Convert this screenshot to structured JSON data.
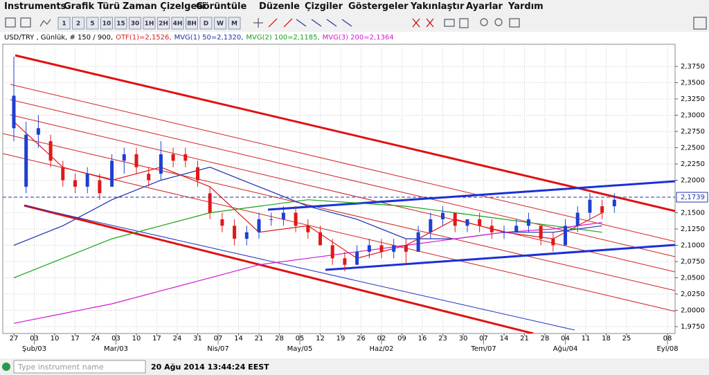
{
  "menu": [
    "Instruments",
    "Grafik Türü",
    "Zaman Çizelgesi",
    "Görüntüle",
    "Düzenle",
    "Çizgiler",
    "Göstergeler",
    "Yakınlaştır",
    "Ayarlar",
    "Yardım"
  ],
  "timeframes": [
    "1",
    "2",
    "5",
    "10",
    "15",
    "30",
    "1H",
    "2H",
    "4H",
    "8H",
    "D",
    "W",
    "M"
  ],
  "chart_data": {
    "type": "candlestick",
    "title": "USD/TRY , Günlük, # 150 / 900,",
    "x": [
      0,
      3,
      6,
      9,
      12,
      15,
      18,
      21,
      24,
      27,
      30,
      33,
      36,
      39,
      42,
      45,
      48,
      51,
      54,
      57,
      60,
      63,
      66,
      69,
      72,
      75,
      78,
      81,
      84,
      87,
      90,
      93,
      96,
      99,
      102,
      105,
      108,
      111,
      114,
      117,
      120,
      123,
      126,
      129,
      132,
      135,
      138,
      141,
      144,
      147
    ],
    "open": [
      2.28,
      2.19,
      2.27,
      2.26,
      2.22,
      2.2,
      2.19,
      2.2,
      2.19,
      2.23,
      2.24,
      2.21,
      2.21,
      2.24,
      2.24,
      2.22,
      2.18,
      2.14,
      2.13,
      2.11,
      2.12,
      2.14,
      2.14,
      2.15,
      2.13,
      2.12,
      2.1,
      2.08,
      2.07,
      2.09,
      2.1,
      2.09,
      2.1,
      2.09,
      2.12,
      2.14,
      2.15,
      2.13,
      2.14,
      2.13,
      2.12,
      2.12,
      2.13,
      2.13,
      2.11,
      2.1,
      2.13,
      2.15,
      2.16,
      2.16
    ],
    "high": [
      2.39,
      2.29,
      2.3,
      2.27,
      2.23,
      2.21,
      2.22,
      2.21,
      2.24,
      2.25,
      2.25,
      2.22,
      2.26,
      2.25,
      2.25,
      2.23,
      2.19,
      2.15,
      2.14,
      2.13,
      2.15,
      2.15,
      2.16,
      2.16,
      2.14,
      2.13,
      2.11,
      2.09,
      2.1,
      2.11,
      2.11,
      2.11,
      2.11,
      2.13,
      2.15,
      2.16,
      2.15,
      2.14,
      2.15,
      2.14,
      2.13,
      2.14,
      2.15,
      2.13,
      2.12,
      2.14,
      2.16,
      2.18,
      2.17,
      2.18
    ],
    "low": [
      2.26,
      2.18,
      2.25,
      2.22,
      2.19,
      2.18,
      2.18,
      2.17,
      2.19,
      2.21,
      2.21,
      2.19,
      2.2,
      2.22,
      2.22,
      2.19,
      2.14,
      2.12,
      2.1,
      2.1,
      2.11,
      2.13,
      2.13,
      2.12,
      2.11,
      2.1,
      2.07,
      2.06,
      2.07,
      2.08,
      2.08,
      2.08,
      2.07,
      2.09,
      2.11,
      2.13,
      2.12,
      2.12,
      2.12,
      2.11,
      2.11,
      2.12,
      2.12,
      2.1,
      2.09,
      2.1,
      2.12,
      2.14,
      2.14,
      2.15
    ],
    "close": [
      2.33,
      2.27,
      2.28,
      2.23,
      2.2,
      2.19,
      2.21,
      2.18,
      2.23,
      2.24,
      2.22,
      2.2,
      2.24,
      2.23,
      2.23,
      2.2,
      2.15,
      2.13,
      2.11,
      2.12,
      2.14,
      2.14,
      2.15,
      2.13,
      2.12,
      2.1,
      2.08,
      2.07,
      2.09,
      2.1,
      2.09,
      2.1,
      2.09,
      2.12,
      2.14,
      2.15,
      2.13,
      2.14,
      2.13,
      2.12,
      2.12,
      2.13,
      2.14,
      2.11,
      2.1,
      2.13,
      2.15,
      2.17,
      2.15,
      2.17
    ],
    "up_color": "#1f3fd0",
    "down_color": "#e01818",
    "series": [
      {
        "name": "OTF(1)=2,1526,",
        "color": "#e01818",
        "x": [
          0,
          12,
          24,
          36,
          48,
          60,
          72,
          84,
          96,
          108,
          120,
          132,
          144
        ],
        "values": [
          2.29,
          2.22,
          2.2,
          2.22,
          2.19,
          2.12,
          2.13,
          2.08,
          2.1,
          2.14,
          2.12,
          2.11,
          2.15
        ]
      },
      {
        "name": "MVG(1) 50=2,1320,",
        "color": "#1a2fb0",
        "x": [
          0,
          12,
          24,
          36,
          48,
          60,
          72,
          84,
          96,
          108,
          120,
          132,
          144
        ],
        "values": [
          2.1,
          2.13,
          2.17,
          2.2,
          2.22,
          2.19,
          2.16,
          2.14,
          2.11,
          2.11,
          2.12,
          2.12,
          2.13
        ]
      },
      {
        "name": "MVG(2) 100=2,1185,",
        "color": "#18a018",
        "x": [
          0,
          12,
          24,
          36,
          48,
          60,
          72,
          84,
          96,
          108,
          120,
          132,
          144
        ],
        "values": [
          2.05,
          2.08,
          2.11,
          2.13,
          2.15,
          2.16,
          2.17,
          2.165,
          2.16,
          2.15,
          2.14,
          2.13,
          2.12
        ]
      },
      {
        "name": "MVG(3) 200=2,1364",
        "color": "#d018d0",
        "x": [
          0,
          12,
          24,
          36,
          48,
          60,
          72,
          84,
          96,
          108,
          120,
          132,
          144
        ],
        "values": [
          1.98,
          1.995,
          2.01,
          2.03,
          2.05,
          2.07,
          2.08,
          2.09,
          2.1,
          2.11,
          2.12,
          2.125,
          2.135
        ]
      }
    ],
    "current_price": {
      "value": 2.1739,
      "label": "2,1739"
    },
    "xlim": [
      -2.71,
      161.86
    ],
    "ylim": [
      1.9644,
      2.409
    ],
    "grid": true,
    "yticks": [
      {
        "value": 1.975,
        "label": "1,9750"
      },
      {
        "value": 2.0,
        "label": "2,0000"
      },
      {
        "value": 2.025,
        "label": "2,0250"
      },
      {
        "value": 2.05,
        "label": "2,0500"
      },
      {
        "value": 2.075,
        "label": "2,0750"
      },
      {
        "value": 2.1,
        "label": "2,1000"
      },
      {
        "value": 2.125,
        "label": "2,1250"
      },
      {
        "value": 2.15,
        "label": "2,1500"
      },
      {
        "value": 2.2,
        "label": "2,2000"
      },
      {
        "value": 2.225,
        "label": "2,2250"
      },
      {
        "value": 2.25,
        "label": "2,2500"
      },
      {
        "value": 2.275,
        "label": "2,2750"
      },
      {
        "value": 2.3,
        "label": "2,3000"
      },
      {
        "value": 2.325,
        "label": "2,3250"
      },
      {
        "value": 2.35,
        "label": "2,3500"
      },
      {
        "value": 2.375,
        "label": "2,3750"
      }
    ],
    "xticks": [
      {
        "value": 0,
        "label": "27"
      },
      {
        "value": 5,
        "label": "03"
      },
      {
        "value": 10,
        "label": "10"
      },
      {
        "value": 15,
        "label": "17"
      },
      {
        "value": 20,
        "label": "24"
      },
      {
        "value": 25,
        "label": "03"
      },
      {
        "value": 30,
        "label": "10"
      },
      {
        "value": 35,
        "label": "17"
      },
      {
        "value": 40,
        "label": "24"
      },
      {
        "value": 45,
        "label": "31"
      },
      {
        "value": 50,
        "label": "07"
      },
      {
        "value": 55,
        "label": "14"
      },
      {
        "value": 60,
        "label": "21"
      },
      {
        "value": 65,
        "label": "28"
      },
      {
        "value": 70,
        "label": "05"
      },
      {
        "value": 75,
        "label": "12"
      },
      {
        "value": 80,
        "label": "19"
      },
      {
        "value": 85,
        "label": "26"
      },
      {
        "value": 90,
        "label": "02"
      },
      {
        "value": 95,
        "label": "09"
      },
      {
        "value": 100,
        "label": "16"
      },
      {
        "value": 105,
        "label": "23"
      },
      {
        "value": 110,
        "label": "30"
      },
      {
        "value": 115,
        "label": "07"
      },
      {
        "value": 120,
        "label": "14"
      },
      {
        "value": 125,
        "label": "21"
      },
      {
        "value": 130,
        "label": "28"
      },
      {
        "value": 135,
        "label": "04"
      },
      {
        "value": 140,
        "label": "11"
      },
      {
        "value": 145,
        "label": "18"
      },
      {
        "value": 150,
        "label": "25"
      },
      {
        "value": 160,
        "label": "08"
      }
    ],
    "month_ticks": [
      {
        "value": 5,
        "label": "Şub/03"
      },
      {
        "value": 25,
        "label": "Mar/03"
      },
      {
        "value": 50,
        "label": "Nis/07"
      },
      {
        "value": 70,
        "label": "May/05"
      },
      {
        "value": 90,
        "label": "Haz/02"
      },
      {
        "value": 115,
        "label": "Tem/07"
      },
      {
        "value": 135,
        "label": "Ağu/04"
      },
      {
        "value": 160,
        "label": "Eyl/08"
      }
    ]
  },
  "status": {
    "placeholder": "Type instrument name",
    "timestamp": "20 Ağu 2014 13:44:24 EEST"
  }
}
